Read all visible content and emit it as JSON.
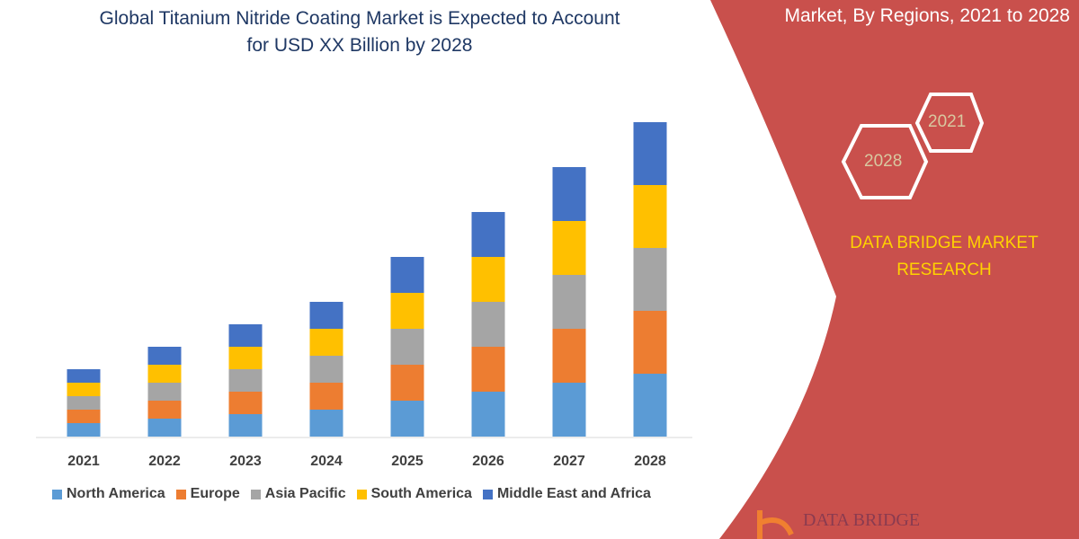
{
  "title": "Global Titanium Nitride Coating Market is Expected to Account for USD XX Billion by 2028",
  "title_line1": "Global Titanium Nitride Coating Market is Expected to Account",
  "title_line2": "for USD XX Billion by 2028",
  "right_panel": {
    "title": "Market, By Regions, 2021 to 2028",
    "hex_years": [
      "2021",
      "2028"
    ],
    "brand": "DATA BRIDGE MARKET RESEARCH",
    "logo_text": "DATA BRIDGE",
    "panel_color": "#c9504c",
    "brand_color": "#ffd200"
  },
  "chart_data": {
    "type": "bar",
    "stacked": true,
    "categories": [
      "2021",
      "2022",
      "2023",
      "2024",
      "2025",
      "2026",
      "2027",
      "2028"
    ],
    "series": [
      {
        "name": "North America",
        "color": "#5b9bd5",
        "values": [
          1.5,
          2,
          2.5,
          3,
          4,
          5,
          6,
          7
        ]
      },
      {
        "name": "Europe",
        "color": "#ed7d31",
        "values": [
          1.5,
          2,
          2.5,
          3,
          4,
          5,
          6,
          7
        ]
      },
      {
        "name": "Asia Pacific",
        "color": "#a5a5a5",
        "values": [
          1.5,
          2,
          2.5,
          3,
          4,
          5,
          6,
          7
        ]
      },
      {
        "name": "South America",
        "color": "#ffc000",
        "values": [
          1.5,
          2,
          2.5,
          3,
          4,
          5,
          6,
          7
        ]
      },
      {
        "name": "Middle East and Africa",
        "color": "#4472c4",
        "values": [
          1.5,
          2,
          2.5,
          3,
          4,
          5,
          6,
          7
        ]
      }
    ],
    "xlabel": "",
    "ylabel": "",
    "y_axis_shown": false,
    "grid": false,
    "legend": "bottom"
  }
}
